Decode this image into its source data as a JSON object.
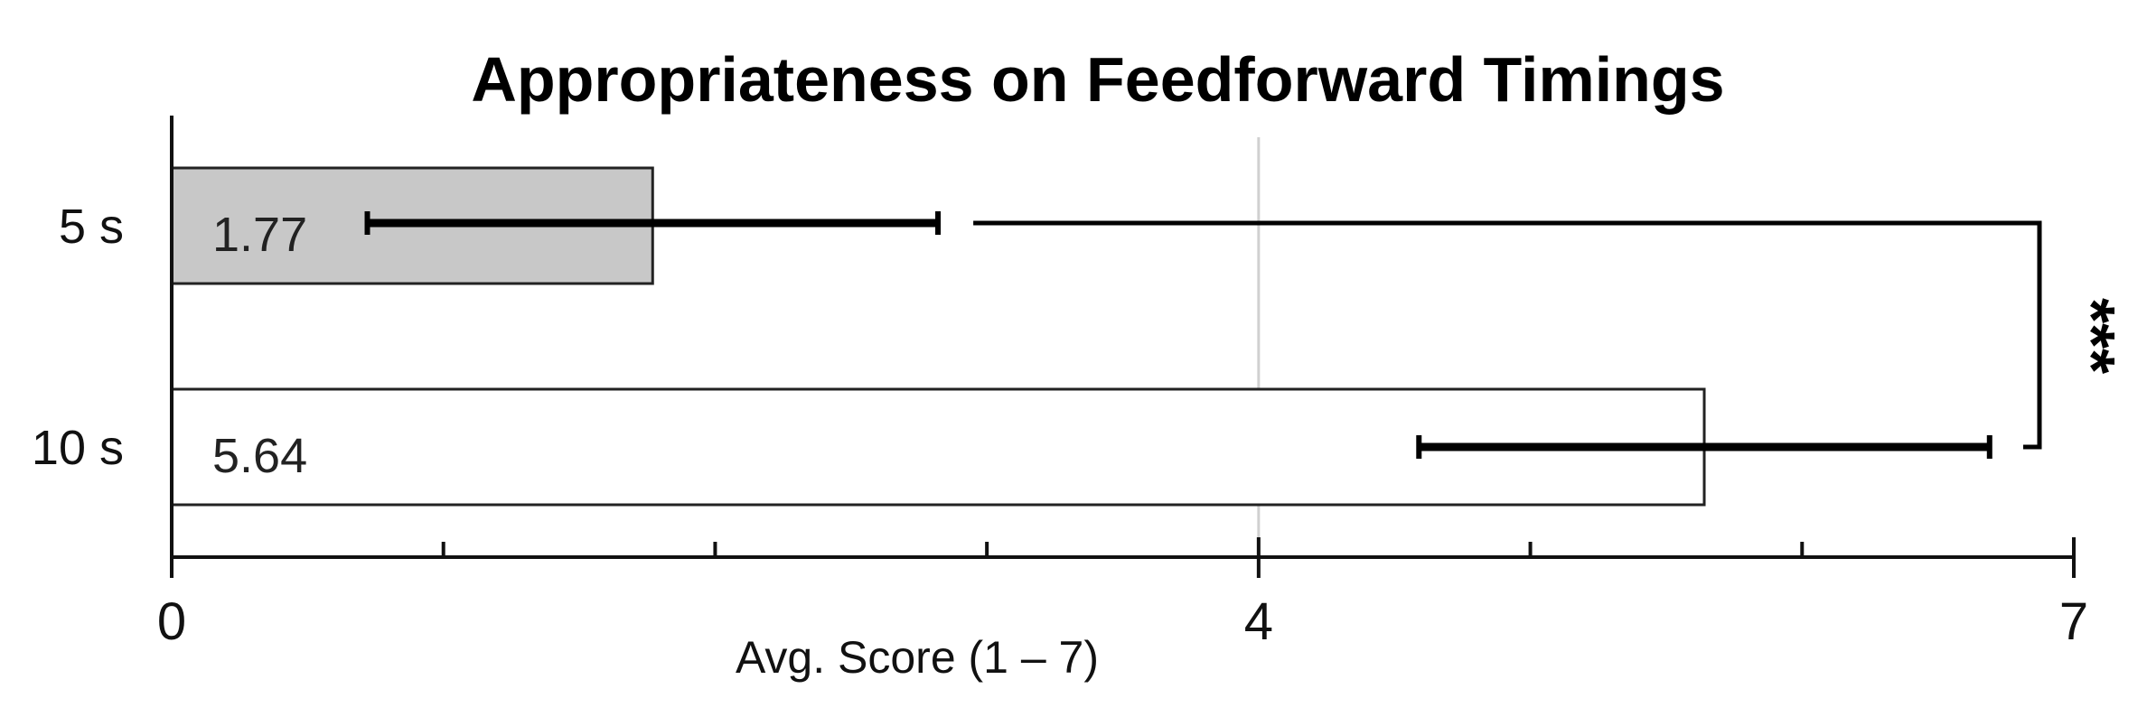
{
  "chart_data": {
    "type": "bar",
    "orientation": "horizontal",
    "title": "Appropriateness on Feedforward Timings",
    "xlabel": "Avg. Score (1 – 7)",
    "ylabel": "",
    "xlim": [
      0,
      7
    ],
    "x_ticks": [
      0,
      1,
      2,
      3,
      4,
      5,
      6,
      7
    ],
    "x_tick_labels": {
      "0": "0",
      "4": "4",
      "7": "7"
    },
    "grid": "vertical line at 4 only",
    "categories": [
      "5 s",
      "10 s"
    ],
    "values": [
      1.77,
      5.64
    ],
    "value_labels": [
      "1.77",
      "5.64"
    ],
    "error": [
      1.05,
      1.05
    ],
    "bar_colors": [
      "#c8c8c8",
      "#ffffff"
    ],
    "significance": {
      "between": [
        "5 s",
        "10 s"
      ],
      "label": "***"
    }
  }
}
